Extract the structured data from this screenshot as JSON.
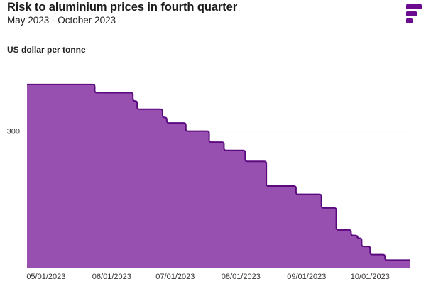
{
  "header": {
    "title": "Risk to aluminium prices in fourth quarter",
    "subtitle": "May 2023 - October 2023",
    "y_axis_label": "US dollar per tonne"
  },
  "brand": {
    "logo_icon": "brand-logo-icon",
    "color": "#6c0b8f"
  },
  "colors": {
    "fill": "#9850b0",
    "line": "#5a0a7e",
    "grid": "#e5e5e5",
    "axis_text": "#333333"
  },
  "chart_data": {
    "type": "area",
    "title": "Risk to aluminium prices in fourth quarter",
    "subtitle": "May 2023 - October 2023",
    "xlabel": "",
    "ylabel": "US dollar per tonne",
    "x_tick_labels": [
      "05/01/2023",
      "06/01/2023",
      "07/01/2023",
      "08/01/2023",
      "09/01/2023",
      "10/01/2023"
    ],
    "y_tick_labels": [
      "300"
    ],
    "y_ticks": [
      300
    ],
    "ylim": [
      250,
      325
    ],
    "xlim": [
      "2023-04-22",
      "2023-10-20"
    ],
    "grid": true,
    "step": true,
    "series": [
      {
        "x": [
          "2023-04-22",
          "2023-05-24",
          "2023-06-11",
          "2023-06-13",
          "2023-06-25",
          "2023-06-27",
          "2023-07-06",
          "2023-07-17",
          "2023-07-24",
          "2023-08-03",
          "2023-08-13",
          "2023-08-27",
          "2023-09-08",
          "2023-09-15",
          "2023-09-22",
          "2023-09-25",
          "2023-09-27",
          "2023-10-01",
          "2023-10-08"
        ],
        "y": [
          317,
          314,
          311,
          308,
          305,
          303,
          300,
          296,
          293,
          289,
          280,
          277,
          272,
          264,
          262,
          261,
          258,
          255,
          253
        ]
      }
    ]
  }
}
